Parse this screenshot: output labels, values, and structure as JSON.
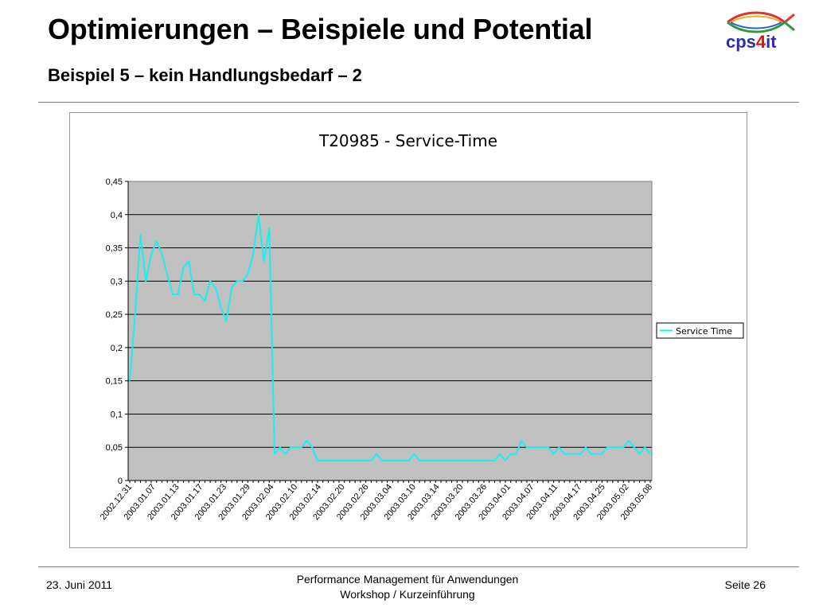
{
  "header": {
    "title": "Optimierungen – Beispiele und Potential",
    "subtitle": "Beispiel 5 – kein Handlungsbedarf – 2",
    "logo_text_a": "cps",
    "logo_text_b": "4",
    "logo_text_c": "it"
  },
  "footer": {
    "date": "23. Juni 2011",
    "center_line1": "Performance Management für Anwendungen",
    "center_line2": "Workshop / Kurzeinführung",
    "page": "Seite 26"
  },
  "colors": {
    "plot_background": "#c0c0c0",
    "series_line": "#19f0f0",
    "logo_blue": "#2b2fb0",
    "logo_red": "#d01818"
  },
  "chart_data": {
    "type": "line",
    "title": "T20985 - Service-Time",
    "xlabel": "",
    "ylabel": "",
    "ylim": [
      0,
      0.45
    ],
    "yticks": [
      "0",
      "0,05",
      "0,1",
      "0,15",
      "0,2",
      "0,25",
      "0,3",
      "0,35",
      "0,4",
      "0,45"
    ],
    "grid": true,
    "legend_position": "right",
    "xtick_labels": [
      "2002.12.31",
      "2003.01.07",
      "2003.01.13",
      "2003.01.17",
      "2003.01.23",
      "2003.01.29",
      "2003.02.04",
      "2003.02.10",
      "2003.02.14",
      "2003.02.20",
      "2003.02.26",
      "2003.03.04",
      "2003.03.10",
      "2003.03.14",
      "2003.03.20",
      "2003.03.26",
      "2003.04.01",
      "2003.04.07",
      "2003.04.11",
      "2003.04.17",
      "2003.04.25",
      "2003.05.02",
      "2003.05.08"
    ],
    "series": [
      {
        "name": "Service Time",
        "values": [
          0.15,
          0.25,
          0.37,
          0.3,
          0.34,
          0.36,
          0.34,
          0.31,
          0.28,
          0.28,
          0.32,
          0.33,
          0.28,
          0.28,
          0.27,
          0.3,
          0.29,
          0.26,
          0.24,
          0.29,
          0.3,
          0.3,
          0.31,
          0.34,
          0.4,
          0.33,
          0.38,
          0.04,
          0.05,
          0.04,
          0.05,
          0.05,
          0.05,
          0.06,
          0.05,
          0.03,
          0.03,
          0.03,
          0.03,
          0.03,
          0.03,
          0.03,
          0.03,
          0.03,
          0.03,
          0.03,
          0.04,
          0.03,
          0.03,
          0.03,
          0.03,
          0.03,
          0.03,
          0.04,
          0.03,
          0.03,
          0.03,
          0.03,
          0.03,
          0.03,
          0.03,
          0.03,
          0.03,
          0.03,
          0.03,
          0.03,
          0.03,
          0.03,
          0.03,
          0.04,
          0.03,
          0.04,
          0.04,
          0.06,
          0.05,
          0.05,
          0.05,
          0.05,
          0.05,
          0.04,
          0.05,
          0.04,
          0.04,
          0.04,
          0.04,
          0.05,
          0.04,
          0.04,
          0.04,
          0.05,
          0.05,
          0.05,
          0.05,
          0.06,
          0.05,
          0.04,
          0.05,
          0.04
        ]
      }
    ]
  }
}
